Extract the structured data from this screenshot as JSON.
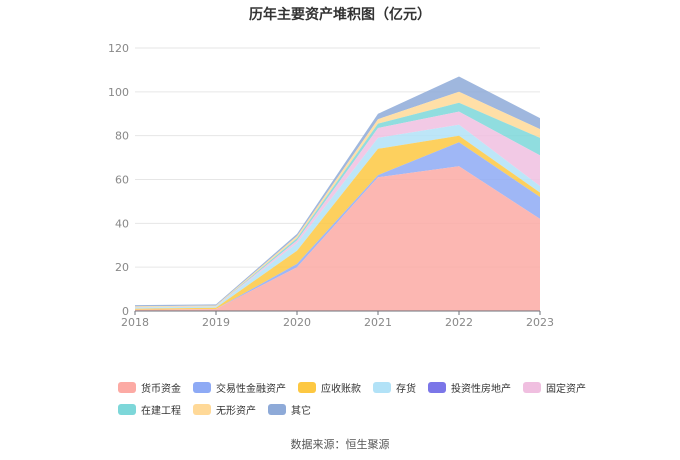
{
  "chart_data": {
    "type": "area",
    "stacked": true,
    "title": "历年主要资产堆积图（亿元）",
    "categories": [
      "2018",
      "2019",
      "2020",
      "2021",
      "2022",
      "2023"
    ],
    "ylim": [
      0,
      120
    ],
    "yticks": [
      0,
      20,
      40,
      60,
      80,
      100,
      120
    ],
    "grid": true,
    "legend_position": "bottom",
    "series": [
      {
        "name": "货币资金",
        "color": "#fcaaa4",
        "values": [
          0.6,
          0.9,
          20,
          61,
          66,
          42
        ]
      },
      {
        "name": "交易性金融资产",
        "color": "#8eaaf5",
        "values": [
          0,
          0,
          1.5,
          1,
          11,
          10
        ]
      },
      {
        "name": "应收账款",
        "color": "#fdc842",
        "values": [
          0.4,
          0.6,
          6,
          12,
          3,
          2
        ]
      },
      {
        "name": "存货",
        "color": "#b2e2f7",
        "values": [
          0.6,
          0.5,
          3.5,
          5,
          5,
          3
        ]
      },
      {
        "name": "投资性房地产",
        "color": "#7b76e8",
        "values": [
          0,
          0,
          0,
          0,
          0,
          0
        ]
      },
      {
        "name": "固定资产",
        "color": "#f0bfe0",
        "values": [
          0.1,
          0.1,
          1.2,
          4.5,
          6,
          14
        ]
      },
      {
        "name": "在建工程",
        "color": "#7dd7d9",
        "values": [
          0.1,
          0.1,
          1,
          2,
          4,
          8
        ]
      },
      {
        "name": "无形资产",
        "color": "#ffd998",
        "values": [
          0.3,
          0.3,
          1,
          2,
          5,
          4
        ]
      },
      {
        "name": "其它",
        "color": "#8eaad8",
        "values": [
          0.6,
          0.5,
          1,
          2.5,
          7,
          5
        ]
      }
    ]
  },
  "source_text": "数据来源：恒生聚源"
}
